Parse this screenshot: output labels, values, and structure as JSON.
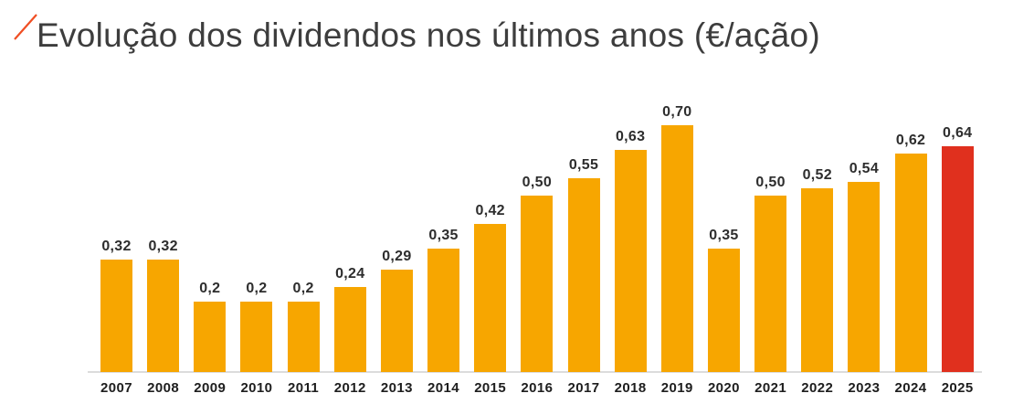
{
  "theme": {
    "bar_color": "#F7A600",
    "highlight_color": "#E0301E",
    "slash_color": "#F04E23",
    "axis_line_color": "#DCDCDC",
    "background_color": "#FFFFFF"
  },
  "chart_data": {
    "type": "bar",
    "title": "Evolução dos dividendos nos últimos anos (€/ação)",
    "xlabel": "",
    "ylabel": "",
    "categories": [
      "2007",
      "2008",
      "2009",
      "2010",
      "2011",
      "2012",
      "2013",
      "2014",
      "2015",
      "2016",
      "2017",
      "2018",
      "2019",
      "2020",
      "2021",
      "2022",
      "2023",
      "2024",
      "2025"
    ],
    "values": [
      0.32,
      0.32,
      0.2,
      0.2,
      0.2,
      0.24,
      0.29,
      0.35,
      0.42,
      0.5,
      0.55,
      0.63,
      0.7,
      0.35,
      0.5,
      0.52,
      0.54,
      0.62,
      0.64
    ],
    "value_labels": [
      "0,32",
      "0,32",
      "0,2",
      "0,2",
      "0,2",
      "0,24",
      "0,29",
      "0,35",
      "0,42",
      "0,50",
      "0,55",
      "0,63",
      "0,70",
      "0,35",
      "0,50",
      "0,52",
      "0,54",
      "0,62",
      "0,64"
    ],
    "ylim": [
      0,
      0.7
    ],
    "grid": false,
    "legend": "none",
    "decimal_separator": ",",
    "highlight_index": 18,
    "highlight_category": "2025",
    "bar_color": "#F7A600",
    "highlight_color": "#E0301E"
  }
}
